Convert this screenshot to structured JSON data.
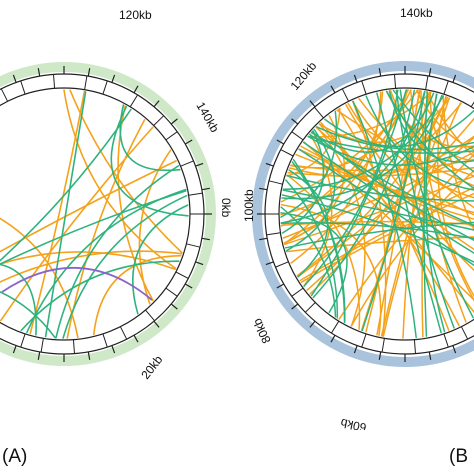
{
  "colors": {
    "panel_a_ring": "#cfe9c8",
    "panel_b_ring": "#a9c3dc",
    "orange": "#f5a21b",
    "green": "#2fb37e",
    "purple": "#8a63cf",
    "ink": "#111111"
  },
  "panels": [
    {
      "label": "(A)",
      "ticks": [
        "120kb",
        "140kb",
        "0kb",
        "20kb"
      ],
      "link_counts": {
        "orange": 12,
        "green": 12,
        "purple": 1
      }
    },
    {
      "label": "(B",
      "ticks": [
        "140kb",
        "120kb",
        "100kb",
        "80kb",
        "60kb"
      ],
      "link_counts": {
        "orange": 60,
        "green": 40
      }
    }
  ]
}
